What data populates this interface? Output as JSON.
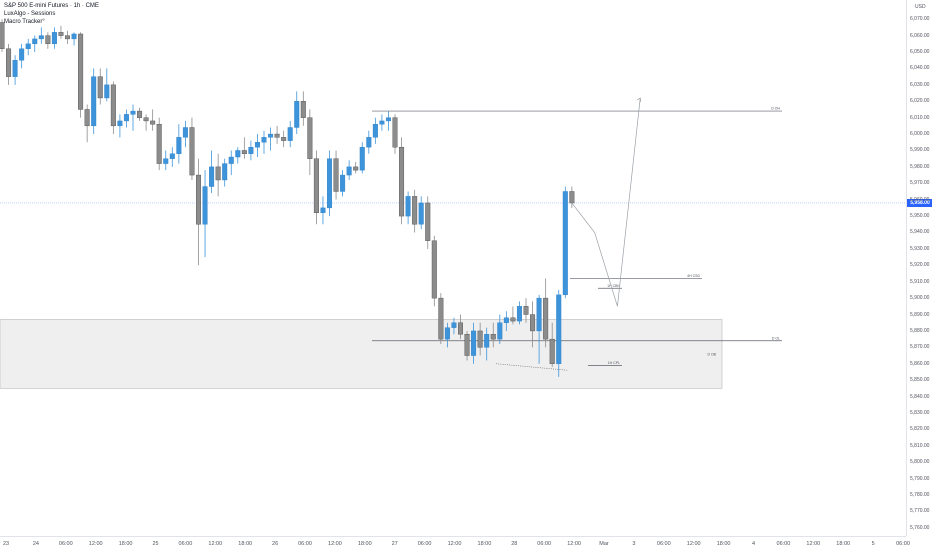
{
  "header": {
    "title": "S&P 500 E-mini Futures · 1h · CME",
    "indicators": [
      "LuxAlgo - Sessions",
      "Macro Tracker°"
    ]
  },
  "colors": {
    "up": "#3d94db",
    "down": "#8c8c8c",
    "zone": "#efefef",
    "level": "#5d606b",
    "highlight": "#2962ff"
  },
  "chart_data": {
    "type": "candlestick",
    "currency": "USD",
    "last_price": "5,958.00",
    "ylim": [
      5755,
      6080
    ],
    "x_labels": [
      "23",
      "24",
      "06:00",
      "12:00",
      "18:00",
      "25",
      "06:00",
      "12:00",
      "18:00",
      "26",
      "06:00",
      "12:00",
      "18:00",
      "27",
      "06:00",
      "12:00",
      "18:00",
      "28",
      "06:00",
      "12:00",
      "Mar",
      "3",
      "06:00",
      "12:00",
      "18:00",
      "4",
      "06:00",
      "12:00",
      "18:00",
      "5",
      "06:00"
    ],
    "y_ticks": [
      "6,070.00",
      "6,060.00",
      "6,050.00",
      "6,040.00",
      "6,030.00",
      "6,020.00",
      "6,010.00",
      "6,000.00",
      "5,990.00",
      "5,980.00",
      "5,970.00",
      "5,960.00",
      "5,950.00",
      "5,940.00",
      "5,930.00",
      "5,920.00",
      "5,910.00",
      "5,900.00",
      "5,890.00",
      "5,880.00",
      "5,870.00",
      "5,860.00",
      "5,850.00",
      "5,840.00",
      "5,830.00",
      "5,820.00",
      "5,810.00",
      "5,800.00",
      "5,790.00",
      "5,780.00",
      "5,770.00",
      "5,760.00"
    ],
    "candles": [
      [
        6068,
        6070,
        6050,
        6052
      ],
      [
        6052,
        6055,
        6030,
        6035
      ],
      [
        6035,
        6048,
        6030,
        6045
      ],
      [
        6045,
        6055,
        6040,
        6052
      ],
      [
        6052,
        6058,
        6048,
        6055
      ],
      [
        6055,
        6060,
        6050,
        6058
      ],
      [
        6058,
        6065,
        6055,
        6060
      ],
      [
        6060,
        6062,
        6052,
        6055
      ],
      [
        6055,
        6065,
        6052,
        6062
      ],
      [
        6062,
        6066,
        6058,
        6060
      ],
      [
        6060,
        6063,
        6055,
        6058
      ],
      [
        6058,
        6062,
        6054,
        6061
      ],
      [
        6061,
        6062,
        6010,
        6015
      ],
      [
        6015,
        6018,
        5995,
        6005
      ],
      [
        6005,
        6040,
        6000,
        6035
      ],
      [
        6035,
        6040,
        6018,
        6022
      ],
      [
        6022,
        6040,
        6020,
        6030
      ],
      [
        6030,
        6032,
        6000,
        6005
      ],
      [
        6005,
        6012,
        5998,
        6008
      ],
      [
        6008,
        6015,
        6004,
        6012
      ],
      [
        6012,
        6018,
        6002,
        6014
      ],
      [
        6014,
        6016,
        6008,
        6010
      ],
      [
        6010,
        6012,
        6002,
        6008
      ],
      [
        6008,
        6015,
        6002,
        6006
      ],
      [
        6006,
        6010,
        5978,
        5982
      ],
      [
        5982,
        5990,
        5978,
        5985
      ],
      [
        5985,
        5992,
        5980,
        5988
      ],
      [
        5988,
        6006,
        5982,
        5998
      ],
      [
        5998,
        6008,
        5992,
        6004
      ],
      [
        6004,
        6010,
        5972,
        5975
      ],
      [
        5975,
        5985,
        5920,
        5945
      ],
      [
        5945,
        5978,
        5925,
        5968
      ],
      [
        5968,
        5990,
        5964,
        5980
      ],
      [
        5980,
        5988,
        5962,
        5972
      ],
      [
        5972,
        5985,
        5968,
        5982
      ],
      [
        5982,
        5990,
        5975,
        5986
      ],
      [
        5986,
        5992,
        5982,
        5990
      ],
      [
        5990,
        5998,
        5985,
        5988
      ],
      [
        5988,
        5996,
        5984,
        5992
      ],
      [
        5992,
        6000,
        5986,
        5995
      ],
      [
        5995,
        6002,
        5988,
        5998
      ],
      [
        5998,
        6004,
        5990,
        6000
      ],
      [
        6000,
        6005,
        5994,
        5998
      ],
      [
        5998,
        6002,
        5992,
        5996
      ],
      [
        5996,
        6008,
        5992,
        6004
      ],
      [
        6004,
        6026,
        6000,
        6020
      ],
      [
        6020,
        6026,
        6005,
        6010
      ],
      [
        6010,
        6015,
        5975,
        5985
      ],
      [
        5985,
        5990,
        5945,
        5952
      ],
      [
        5952,
        5962,
        5945,
        5955
      ],
      [
        5955,
        5990,
        5950,
        5985
      ],
      [
        5985,
        5990,
        5960,
        5965
      ],
      [
        5965,
        5978,
        5962,
        5975
      ],
      [
        5975,
        5984,
        5972,
        5980
      ],
      [
        5980,
        5983,
        5976,
        5978
      ],
      [
        5978,
        5995,
        5976,
        5992
      ],
      [
        5992,
        6002,
        5988,
        5998
      ],
      [
        5998,
        6010,
        5994,
        6006
      ],
      [
        6006,
        6012,
        6002,
        6008
      ],
      [
        6008,
        6014,
        6002,
        6010
      ],
      [
        6010,
        6012,
        5988,
        5992
      ],
      [
        5992,
        5998,
        5945,
        5950
      ],
      [
        5950,
        5965,
        5945,
        5962
      ],
      [
        5962,
        5966,
        5940,
        5945
      ],
      [
        5945,
        5962,
        5942,
        5958
      ],
      [
        5958,
        5962,
        5930,
        5935
      ],
      [
        5935,
        5938,
        5895,
        5900
      ],
      [
        5900,
        5903,
        5872,
        5875
      ],
      [
        5875,
        5885,
        5870,
        5882
      ],
      [
        5882,
        5888,
        5878,
        5885
      ],
      [
        5885,
        5890,
        5875,
        5878
      ],
      [
        5878,
        5880,
        5862,
        5865
      ],
      [
        5865,
        5885,
        5860,
        5880
      ],
      [
        5880,
        5885,
        5865,
        5870
      ],
      [
        5870,
        5882,
        5862,
        5878
      ],
      [
        5878,
        5885,
        5870,
        5875
      ],
      [
        5875,
        5890,
        5872,
        5885
      ],
      [
        5885,
        5892,
        5880,
        5888
      ],
      [
        5888,
        5895,
        5884,
        5886
      ],
      [
        5886,
        5898,
        5884,
        5895
      ],
      [
        5895,
        5900,
        5885,
        5890
      ],
      [
        5890,
        5898,
        5870,
        5880
      ],
      [
        5880,
        5902,
        5860,
        5900
      ],
      [
        5900,
        5912,
        5870,
        5875
      ],
      [
        5875,
        5885,
        5858,
        5860
      ],
      [
        5860,
        5905,
        5852,
        5902
      ],
      [
        5902,
        5968,
        5900,
        5965
      ],
      [
        5965,
        5968,
        5955,
        5958
      ]
    ],
    "levels": [
      {
        "label": "D OH",
        "price": 6014
      },
      {
        "label": "4H CSD",
        "price": 5912
      },
      {
        "label": "1H CBH",
        "price": 5906
      },
      {
        "label": "D OL",
        "price": 5874
      },
      {
        "label": "1H CPL",
        "price": 5859
      }
    ],
    "zone": {
      "label": "D OB",
      "top": 5887,
      "bottom": 5845
    },
    "projection": [
      [
        5958,
        0
      ],
      [
        5940,
        3
      ],
      [
        5895,
        6
      ],
      [
        6022,
        9
      ]
    ]
  }
}
